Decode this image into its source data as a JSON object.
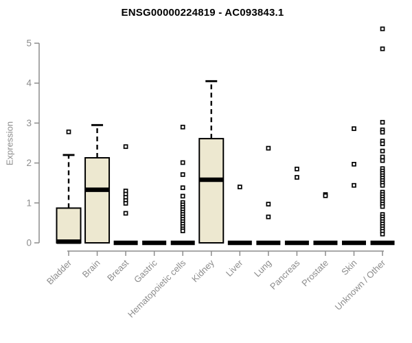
{
  "chart_data": {
    "type": "boxplot",
    "title": "ENSG00000224819 - AC093843.1",
    "ylabel": "Expression",
    "xlabel": "",
    "ylim": [
      0,
      5.5
    ],
    "yticks": [
      0,
      1,
      2,
      3,
      4,
      5
    ],
    "grid": false,
    "legend": false,
    "categories": [
      "Bladder",
      "Brain",
      "Breast",
      "Gastric",
      "Hematopoietic cells",
      "Kidney",
      "Liver",
      "Lung",
      "Pancreas",
      "Prostate",
      "Skin",
      "Unknown / Other"
    ],
    "series": [
      {
        "name": "Bladder",
        "q1": 0,
        "median": 0.03,
        "q3": 0.87,
        "whisker_low": 0,
        "whisker_high": 2.2,
        "outliers": [
          2.78
        ]
      },
      {
        "name": "Brain",
        "q1": 0,
        "median": 1.33,
        "q3": 2.13,
        "whisker_low": 0,
        "whisker_high": 2.95,
        "outliers": []
      },
      {
        "name": "Breast",
        "q1": 0,
        "median": 0,
        "q3": 0,
        "whisker_low": 0,
        "whisker_high": 0,
        "outliers": [
          2.41,
          1.3,
          1.22,
          1.14,
          1.06,
          0.99,
          0.74
        ]
      },
      {
        "name": "Gastric",
        "q1": 0,
        "median": 0,
        "q3": 0,
        "whisker_low": 0,
        "whisker_high": 0,
        "outliers": []
      },
      {
        "name": "Hematopoietic cells",
        "q1": 0,
        "median": 0,
        "q3": 0,
        "whisker_low": 0,
        "whisker_high": 0,
        "outliers": [
          2.9,
          2.01,
          1.71,
          1.38,
          1.17,
          1.01,
          0.95,
          0.89,
          0.83,
          0.77,
          0.71,
          0.65,
          0.59,
          0.53,
          0.47,
          0.41,
          0.35,
          0.3
        ]
      },
      {
        "name": "Kidney",
        "q1": 0,
        "median": 1.58,
        "q3": 2.61,
        "whisker_low": 0,
        "whisker_high": 4.05,
        "outliers": []
      },
      {
        "name": "Liver",
        "q1": 0,
        "median": 0,
        "q3": 0,
        "whisker_low": 0,
        "whisker_high": 0,
        "outliers": [
          1.4
        ]
      },
      {
        "name": "Lung",
        "q1": 0,
        "median": 0,
        "q3": 0,
        "whisker_low": 0,
        "whisker_high": 0,
        "outliers": [
          2.37,
          0.97,
          0.65
        ]
      },
      {
        "name": "Pancreas",
        "q1": 0,
        "median": 0,
        "q3": 0,
        "whisker_low": 0,
        "whisker_high": 0,
        "outliers": [
          1.85,
          1.64
        ]
      },
      {
        "name": "Prostate",
        "q1": 0,
        "median": 0,
        "q3": 0,
        "whisker_low": 0,
        "whisker_high": 0,
        "outliers": [
          1.21,
          1.18
        ]
      },
      {
        "name": "Skin",
        "q1": 0,
        "median": 0,
        "q3": 0,
        "whisker_low": 0,
        "whisker_high": 0,
        "outliers": [
          2.86,
          1.97,
          1.44
        ]
      },
      {
        "name": "Unknown / Other",
        "q1": 0,
        "median": 0,
        "q3": 0,
        "whisker_low": 0,
        "whisker_high": 0,
        "outliers": [
          5.36,
          4.86,
          3.02,
          2.83,
          2.77,
          2.55,
          2.48,
          2.3,
          2.15,
          2.06,
          1.86,
          1.8,
          1.74,
          1.68,
          1.62,
          1.56,
          1.5,
          1.44,
          1.27,
          1.21,
          1.15,
          1.09,
          1.03,
          0.97,
          0.91,
          0.71,
          0.65,
          0.59,
          0.53,
          0.47,
          0.41,
          0.35,
          0.29,
          0.22
        ]
      }
    ],
    "colors": {
      "box_fill": "#EDE8D0",
      "box_stroke": "#000000",
      "median": "#000000",
      "whisker": "#000000",
      "outlier_stroke": "#000000",
      "outlier_fill": "#FFFFFF",
      "axis": "#8C8C8C",
      "tick_label": "#8C8C8C",
      "title": "#000000",
      "background": "#FFFFFF"
    }
  }
}
